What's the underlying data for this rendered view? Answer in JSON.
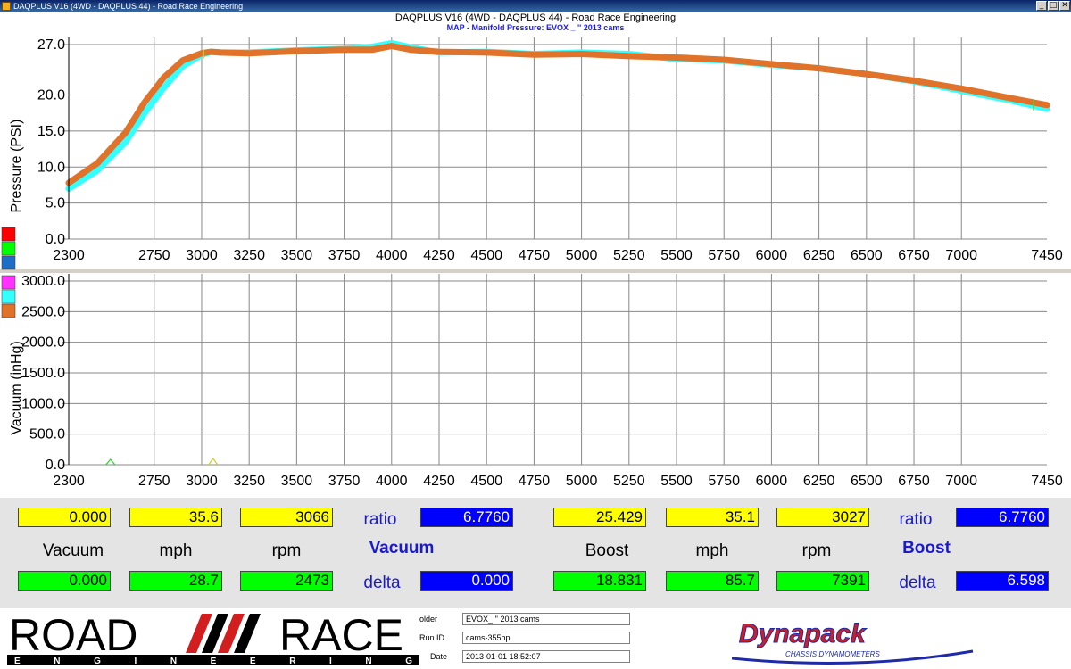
{
  "window": {
    "title": "DAQPLUS V16 (4WD - DAQPLUS 44) - Road Race Engineering",
    "buttons": [
      "_",
      "□",
      "✕"
    ]
  },
  "header": {
    "title": "DAQPLUS V16 (4WD - DAQPLUS 44) - Road Race Engineering",
    "subtitle": "MAP - Manifold Pressure: EVOX _ '' 2013 cams"
  },
  "charts": {
    "x_ticks": [
      "2300",
      "2750",
      "3000",
      "3250",
      "3500",
      "3750",
      "4000",
      "4250",
      "4500",
      "4750",
      "5000",
      "5250",
      "5500",
      "5750",
      "6000",
      "6250",
      "6500",
      "6750",
      "7000",
      "7450"
    ],
    "pressure_ylabel": "Pressure (PSI)",
    "pressure_ticks": [
      "27.0",
      "20.0",
      "15.0",
      "10.0",
      "5.0",
      "0.0"
    ],
    "vacuum_ylabel": "Vacuum (inHg)",
    "vacuum_ticks": [
      "3000.0",
      "2500.0",
      "2000.0",
      "1500.0",
      "1000.0",
      "500.0",
      "0.0"
    ],
    "legend_colors": [
      "#ff0000",
      "#00ff00",
      "#1e6ec8",
      "#ff33ff",
      "#33ffff",
      "#e0722a"
    ]
  },
  "chart_data": [
    {
      "type": "line",
      "ylabel": "Pressure (PSI)",
      "xlim": [
        2300,
        7450
      ],
      "ylim": [
        0,
        27
      ],
      "grid": true,
      "series": [
        {
          "color": "#33ffff",
          "x": [
            2300,
            2450,
            2600,
            2700,
            2800,
            2900,
            3000,
            3050,
            3100,
            3250,
            3500,
            3750,
            3900,
            4000,
            4100,
            4250,
            4500,
            4750,
            5000,
            5250,
            5500,
            5750,
            6000,
            6250,
            6500,
            6750,
            7000,
            7250,
            7450
          ],
          "y": [
            7.0,
            9.5,
            13.5,
            17.5,
            21.0,
            24.0,
            25.6,
            26.0,
            25.9,
            25.9,
            26.2,
            26.4,
            26.7,
            27.2,
            26.6,
            25.9,
            26.0,
            25.7,
            25.9,
            25.7,
            25.0,
            24.8,
            24.2,
            23.7,
            22.9,
            21.9,
            20.6,
            19.3,
            18.1
          ]
        },
        {
          "color": "#e0722a",
          "x": [
            2300,
            2450,
            2600,
            2700,
            2800,
            2900,
            3000,
            3050,
            3100,
            3250,
            3500,
            3750,
            3900,
            4000,
            4100,
            4250,
            4500,
            4750,
            5000,
            5250,
            5500,
            5750,
            6000,
            6250,
            6500,
            6750,
            7000,
            7250,
            7450
          ],
          "y": [
            7.8,
            10.5,
            14.8,
            19.0,
            22.4,
            24.8,
            25.8,
            26.0,
            25.9,
            25.8,
            26.1,
            26.3,
            26.3,
            26.8,
            26.3,
            26.0,
            25.9,
            25.6,
            25.7,
            25.4,
            25.2,
            24.9,
            24.3,
            23.7,
            22.9,
            22.0,
            20.9,
            19.6,
            18.6
          ]
        }
      ]
    },
    {
      "type": "line",
      "ylabel": "Vacuum (inHg)",
      "xlim": [
        2300,
        7450
      ],
      "ylim": [
        0,
        3000
      ],
      "grid": true,
      "series": []
    }
  ],
  "readouts": {
    "vacuum": {
      "top": [
        "0.000",
        "35.6",
        "3066"
      ],
      "ratio_label": "ratio",
      "ratio_value": "6.7760",
      "labels": [
        "Vacuum",
        "mph",
        "rpm"
      ],
      "section_label": "Vacuum",
      "bottom": [
        "0.000",
        "28.7",
        "2473"
      ],
      "delta_label": "delta",
      "delta_value": "0.000"
    },
    "boost": {
      "top": [
        "25.429",
        "35.1",
        "3027"
      ],
      "ratio_label": "ratio",
      "ratio_value": "6.7760",
      "labels": [
        "Boost",
        "mph",
        "rpm"
      ],
      "section_label": "Boost",
      "bottom": [
        "18.831",
        "85.7",
        "7391"
      ],
      "delta_label": "delta",
      "delta_value": "6.598"
    }
  },
  "footer": {
    "logo_left": {
      "word1": "ROAD",
      "word2": "RACE",
      "sub": "E N G I N E E R I N G"
    },
    "folder_label": "older",
    "folder_value": "EVOX_ '' 2013 cams",
    "run_label": "Run ID",
    "run_value": "cams-355hp",
    "date_label": "Date",
    "date_value": "2013-01-01 18:52:07",
    "logo_right": {
      "name": "Dynapack",
      "sub": "CHASSIS DYNAMOMETERS"
    }
  }
}
